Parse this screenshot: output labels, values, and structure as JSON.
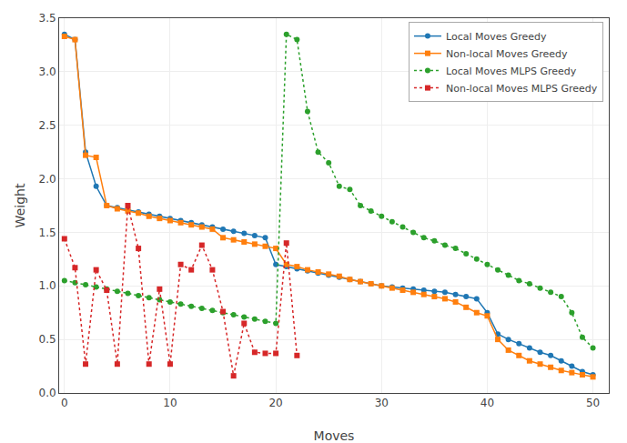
{
  "chart_data": {
    "type": "line",
    "xlabel": "Moves",
    "ylabel": "Weight",
    "xlim": [
      -0.5,
      51.5
    ],
    "ylim": [
      0.0,
      3.5
    ],
    "xticks": [
      0,
      10,
      20,
      30,
      40,
      50
    ],
    "yticks": [
      {
        "value": 0.0,
        "label": "0.0"
      },
      0.5,
      {
        "value": 1.0,
        "label": "1.0"
      },
      1.5,
      {
        "value": 2.0,
        "label": "2.0"
      },
      2.5,
      {
        "value": 3.0,
        "label": "3.0"
      },
      3.5
    ],
    "grid": true,
    "legend": "upper right",
    "series": [
      {
        "name": "Local Moves Greedy",
        "marker": "circle",
        "line_style": "solid",
        "x": [
          0,
          1,
          2,
          3,
          4,
          5,
          6,
          7,
          8,
          9,
          10,
          11,
          12,
          13,
          14,
          15,
          16,
          17,
          18,
          19,
          20,
          21,
          22,
          23,
          24,
          25,
          26,
          27,
          28,
          29,
          30,
          31,
          32,
          33,
          34,
          35,
          36,
          37,
          38,
          39,
          40,
          41,
          42,
          43,
          44,
          45,
          46,
          47,
          48,
          49,
          50
        ],
        "values": [
          3.35,
          3.3,
          2.25,
          1.93,
          1.75,
          1.73,
          1.71,
          1.69,
          1.67,
          1.65,
          1.63,
          1.61,
          1.59,
          1.57,
          1.55,
          1.53,
          1.51,
          1.49,
          1.47,
          1.45,
          1.2,
          1.18,
          1.16,
          1.14,
          1.12,
          1.1,
          1.08,
          1.06,
          1.04,
          1.02,
          1.0,
          0.99,
          0.98,
          0.97,
          0.96,
          0.95,
          0.94,
          0.92,
          0.9,
          0.88,
          0.75,
          0.55,
          0.5,
          0.46,
          0.42,
          0.38,
          0.35,
          0.3,
          0.25,
          0.2,
          0.17
        ]
      },
      {
        "name": "Non-local Moves Greedy",
        "marker": "square",
        "line_style": "solid",
        "x": [
          0,
          1,
          2,
          3,
          4,
          5,
          6,
          7,
          8,
          9,
          10,
          11,
          12,
          13,
          14,
          15,
          16,
          17,
          18,
          19,
          20,
          21,
          22,
          23,
          24,
          25,
          26,
          27,
          28,
          29,
          30,
          31,
          32,
          33,
          34,
          35,
          36,
          37,
          38,
          39,
          40,
          41,
          42,
          43,
          44,
          45,
          46,
          47,
          48,
          49,
          50
        ],
        "values": [
          3.33,
          3.3,
          2.22,
          2.2,
          1.75,
          1.72,
          1.7,
          1.68,
          1.65,
          1.63,
          1.61,
          1.59,
          1.57,
          1.55,
          1.53,
          1.45,
          1.43,
          1.41,
          1.39,
          1.37,
          1.35,
          1.2,
          1.18,
          1.15,
          1.13,
          1.11,
          1.09,
          1.06,
          1.04,
          1.02,
          1.0,
          0.98,
          0.96,
          0.94,
          0.92,
          0.9,
          0.88,
          0.85,
          0.8,
          0.75,
          0.72,
          0.5,
          0.4,
          0.35,
          0.3,
          0.27,
          0.24,
          0.21,
          0.19,
          0.17,
          0.15
        ]
      },
      {
        "name": "Local Moves MLPS Greedy",
        "marker": "circle",
        "line_style": "dotted",
        "x": [
          0,
          1,
          2,
          3,
          4,
          5,
          6,
          7,
          8,
          9,
          10,
          11,
          12,
          13,
          14,
          15,
          16,
          17,
          18,
          19,
          20,
          21,
          22,
          23,
          24,
          25,
          26,
          27,
          28,
          29,
          30,
          31,
          32,
          33,
          34,
          35,
          36,
          37,
          38,
          39,
          40,
          41,
          42,
          43,
          44,
          45,
          46,
          47,
          48,
          49,
          50
        ],
        "values": [
          1.05,
          1.03,
          1.01,
          0.99,
          0.97,
          0.95,
          0.93,
          0.91,
          0.89,
          0.87,
          0.85,
          0.83,
          0.81,
          0.79,
          0.77,
          0.75,
          0.73,
          0.71,
          0.69,
          0.67,
          0.65,
          3.35,
          3.3,
          2.63,
          2.25,
          2.15,
          1.93,
          1.9,
          1.75,
          1.7,
          1.65,
          1.6,
          1.55,
          1.5,
          1.45,
          1.42,
          1.38,
          1.35,
          1.3,
          1.25,
          1.2,
          1.15,
          1.1,
          1.05,
          1.02,
          0.98,
          0.94,
          0.9,
          0.75,
          0.52,
          0.42
        ]
      },
      {
        "name": "Non-local Moves MLPS Greedy",
        "marker": "square",
        "line_style": "dotted",
        "x": [
          0,
          1,
          2,
          3,
          4,
          5,
          6,
          7,
          8,
          9,
          10,
          11,
          12,
          13,
          14,
          15,
          16,
          17,
          18,
          19,
          20,
          21,
          22
        ],
        "values": [
          1.44,
          1.17,
          0.27,
          1.15,
          0.96,
          0.27,
          1.75,
          1.35,
          0.27,
          0.97,
          0.27,
          1.2,
          1.15,
          1.38,
          1.15,
          0.76,
          0.16,
          0.65,
          0.38,
          0.37,
          0.37,
          1.4,
          0.35
        ]
      }
    ]
  }
}
